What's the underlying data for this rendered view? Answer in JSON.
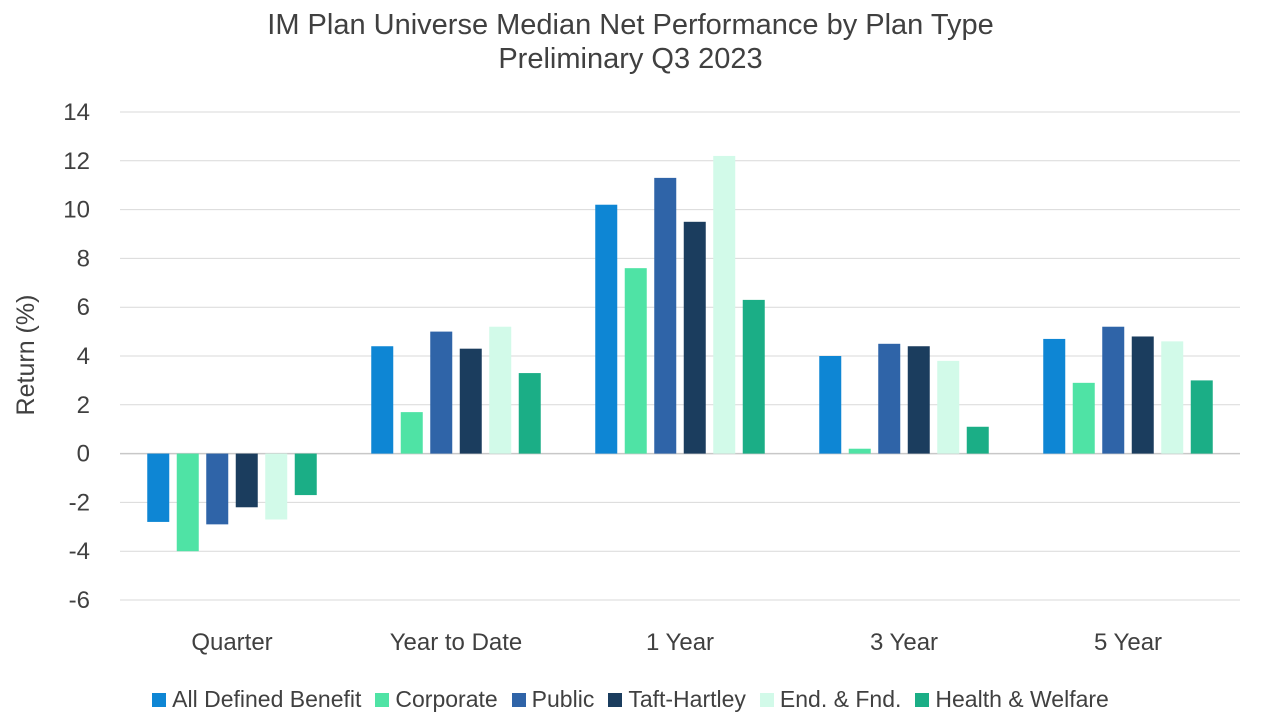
{
  "chart_data": {
    "type": "bar",
    "title": "IM Plan Universe Median Net Performance by Plan Type",
    "subtitle": "Preliminary Q3 2023",
    "xlabel": "",
    "ylabel": "Return (%)",
    "ylim": [
      -6,
      14
    ],
    "yticks": [
      14,
      12,
      10,
      8,
      6,
      4,
      2,
      0,
      -2,
      -4,
      -6
    ],
    "grid": true,
    "legend_position": "bottom",
    "categories": [
      "Quarter",
      "Year to Date",
      "1 Year",
      "3 Year",
      "5 Year"
    ],
    "series": [
      {
        "name": "All Defined Benefit",
        "color": "#0E86D4",
        "values": [
          -2.8,
          4.4,
          10.2,
          4.0,
          4.7
        ]
      },
      {
        "name": "Corporate",
        "color": "#4FE3A5",
        "values": [
          -4.0,
          1.7,
          7.6,
          0.2,
          2.9
        ]
      },
      {
        "name": "Public",
        "color": "#2F64A8",
        "values": [
          -2.9,
          5.0,
          11.3,
          4.5,
          5.2
        ]
      },
      {
        "name": "Taft-Hartley",
        "color": "#1B3D5E",
        "values": [
          -2.2,
          4.3,
          9.5,
          4.4,
          4.8
        ]
      },
      {
        "name": "End. & Fnd.",
        "color": "#D2FAE9",
        "values": [
          -2.7,
          5.2,
          12.2,
          3.8,
          4.6
        ]
      },
      {
        "name": "Health & Welfare",
        "color": "#1BAE86",
        "values": [
          -1.7,
          3.3,
          6.3,
          1.1,
          3.0
        ]
      }
    ]
  }
}
